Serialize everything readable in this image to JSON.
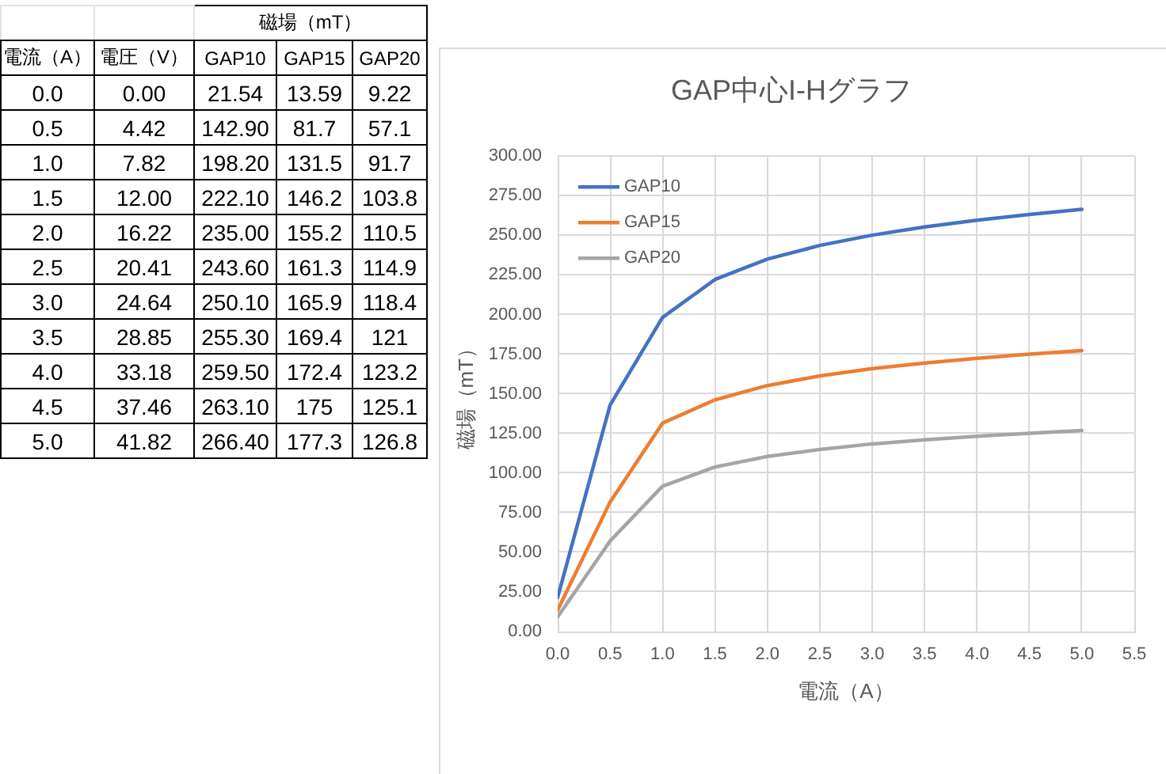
{
  "chart_data": [
    {
      "type": "heatmap",
      "xlabel": "磁場（mT）",
      "ylabel": "電流（A）",
      "categories": [
        "電圧（V）",
        "GAP10",
        "GAP15",
        "GAP20"
      ],
      "y_categories": [
        "0.0",
        "0.5",
        "1.0",
        "1.5",
        "2.0",
        "2.5",
        "3.0",
        "3.5",
        "4.0",
        "4.5",
        "5.0"
      ],
      "cells": [
        [
          0,
          21.54,
          13.59,
          9.22
        ],
        [
          4.42,
          142.9,
          81.7,
          57.1
        ],
        [
          7.82,
          198.2,
          131.5,
          91.7
        ],
        [
          12,
          222.1,
          146.2,
          103.8
        ],
        [
          16.22,
          235,
          155.2,
          110.5
        ],
        [
          20.41,
          243.6,
          161.3,
          114.9
        ],
        [
          24.64,
          250.1,
          165.9,
          118.4
        ],
        [
          28.85,
          255.3,
          169.4,
          121
        ],
        [
          33.18,
          259.5,
          172.4,
          123.2
        ],
        [
          37.46,
          263.1,
          175,
          125.1
        ],
        [
          41.82,
          266.4,
          177.3,
          126.8
        ]
      ],
      "cell_labels": [
        [
          "0.00",
          "21.54",
          "13.59",
          "9.22"
        ],
        [
          "4.42",
          "142.90",
          "81.7",
          "57.1"
        ],
        [
          "7.82",
          "198.20",
          "131.5",
          "91.7"
        ],
        [
          "12.00",
          "222.10",
          "146.2",
          "103.8"
        ],
        [
          "16.22",
          "235.00",
          "155.2",
          "110.5"
        ],
        [
          "20.41",
          "243.60",
          "161.3",
          "114.9"
        ],
        [
          "24.64",
          "250.10",
          "165.9",
          "118.4"
        ],
        [
          "28.85",
          "255.30",
          "169.4",
          "121"
        ],
        [
          "33.18",
          "259.50",
          "172.4",
          "123.2"
        ],
        [
          "37.46",
          "263.10",
          "175",
          "125.1"
        ],
        [
          "41.82",
          "266.40",
          "177.3",
          "126.8"
        ]
      ]
    },
    {
      "type": "line",
      "title": "GAP中心I-Hグラフ",
      "xlabel": "電流（A）",
      "ylabel": "磁場（mT）",
      "x": [
        0,
        0.5,
        1,
        1.5,
        2,
        2.5,
        3,
        3.5,
        4,
        4.5,
        5
      ],
      "series": [
        {
          "name": "GAP10",
          "color": "#4472c4",
          "values": [
            21.54,
            142.9,
            198.2,
            222.1,
            235,
            243.6,
            250.1,
            255.3,
            259.5,
            263.1,
            266.4
          ]
        },
        {
          "name": "GAP15",
          "color": "#ed7d31",
          "values": [
            13.59,
            81.7,
            131.5,
            146.2,
            155.2,
            161.3,
            165.9,
            169.4,
            172.4,
            175,
            177.3
          ]
        },
        {
          "name": "GAP20",
          "color": "#a5a5a5",
          "values": [
            9.22,
            57.1,
            91.7,
            103.8,
            110.5,
            114.9,
            118.4,
            121,
            123.2,
            125.1,
            126.8
          ]
        }
      ],
      "xlim": [
        0,
        5.5
      ],
      "xticks": [
        {
          "value": 0,
          "label": "0.0"
        },
        {
          "value": 0.5,
          "label": "0.5"
        },
        {
          "value": 1,
          "label": "1.0"
        },
        {
          "value": 1.5,
          "label": "1.5"
        },
        {
          "value": 2,
          "label": "2.0"
        },
        {
          "value": 2.5,
          "label": "2.5"
        },
        {
          "value": 3,
          "label": "3.0"
        },
        {
          "value": 3.5,
          "label": "3.5"
        },
        {
          "value": 4,
          "label": "4.0"
        },
        {
          "value": 4.5,
          "label": "4.5"
        },
        {
          "value": 5,
          "label": "5.0"
        },
        {
          "value": 5.5,
          "label": "5.5"
        }
      ],
      "ylim": [
        0,
        300
      ],
      "yticks": [
        {
          "value": 0,
          "label": "0.00"
        },
        {
          "value": 25,
          "label": "25.00"
        },
        {
          "value": 50,
          "label": "50.00"
        },
        {
          "value": 75,
          "label": "75.00"
        },
        {
          "value": 100,
          "label": "100.00"
        },
        {
          "value": 125,
          "label": "125.00"
        },
        {
          "value": 150,
          "label": "150.00"
        },
        {
          "value": 175,
          "label": "175.00"
        },
        {
          "value": 200,
          "label": "200.00"
        },
        {
          "value": 225,
          "label": "225.00"
        },
        {
          "value": 250,
          "label": "250.00"
        },
        {
          "value": 275,
          "label": "275.00"
        },
        {
          "value": 300,
          "label": "300.00"
        }
      ],
      "grid": true,
      "legend": "top left",
      "marker": "none",
      "line_style": "solid"
    }
  ]
}
